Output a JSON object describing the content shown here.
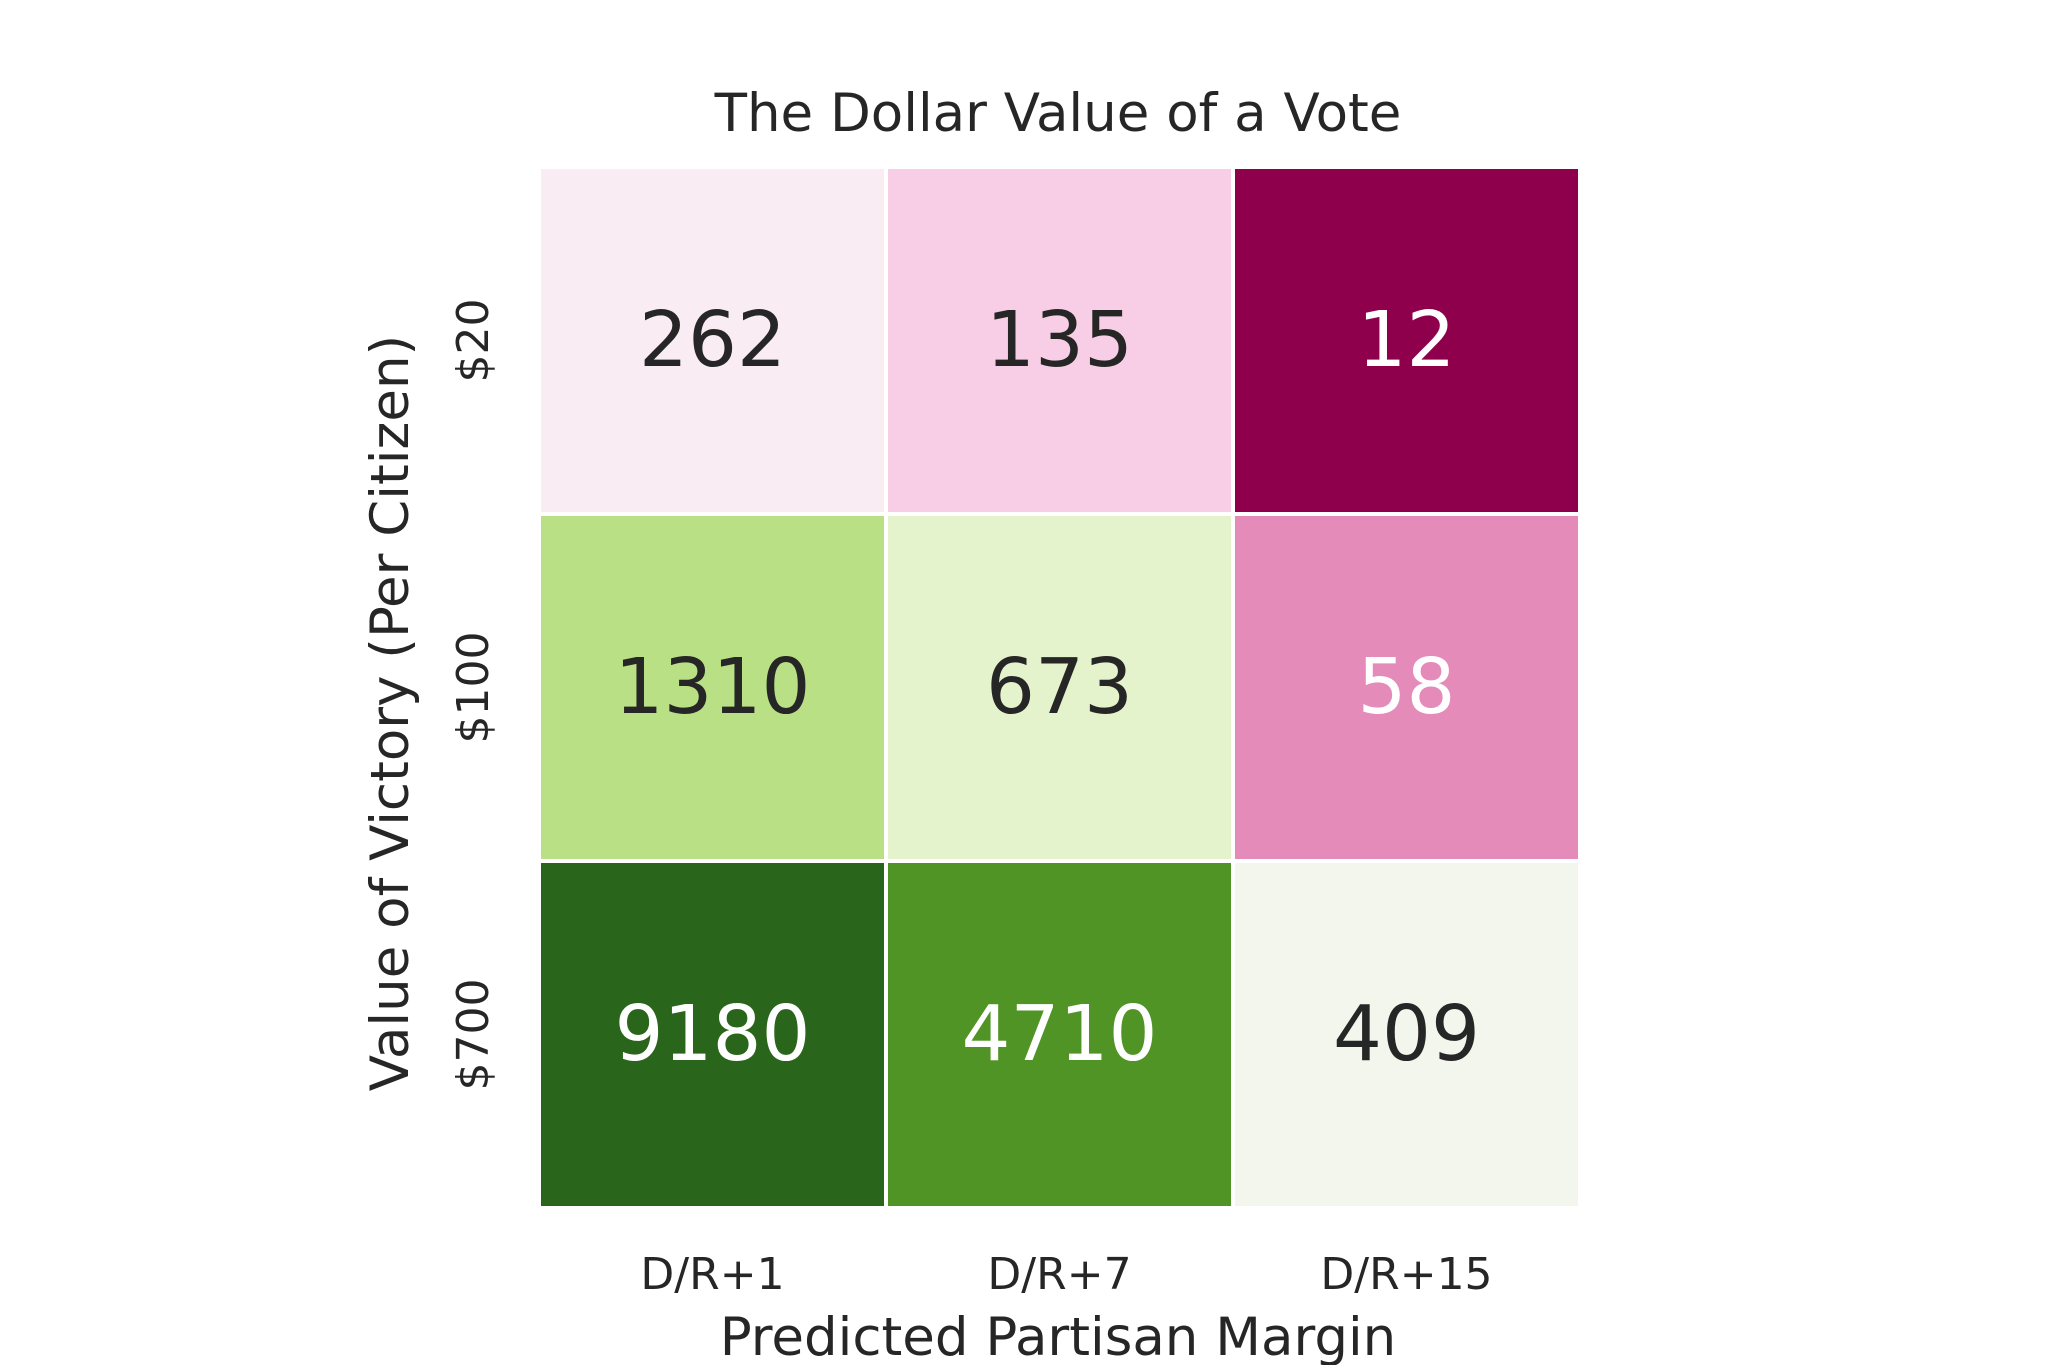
{
  "chart_data": {
    "type": "heatmap",
    "title": "The Dollar Value of a Vote",
    "xlabel": "Predicted Partisan Margin",
    "ylabel": "Value of Victory (Per Citizen)",
    "x_categories": [
      "D/R+1",
      "D/R+7",
      "D/R+15"
    ],
    "y_categories": [
      "$20",
      "$100",
      "$700"
    ],
    "values": [
      [
        262,
        135,
        12
      ],
      [
        1310,
        673,
        58
      ],
      [
        9180,
        4710,
        409
      ]
    ],
    "cell_colors": [
      [
        "#f9ecf3",
        "#f7cee5",
        "#8e004c"
      ],
      [
        "#b9e084",
        "#e4f3cc",
        "#e48bba"
      ],
      [
        "#29651a",
        "#4f9424",
        "#f3f6ec"
      ]
    ],
    "value_text_colors": [
      [
        "#262626",
        "#262626",
        "#ffffff"
      ],
      [
        "#262626",
        "#262626",
        "#ffffff"
      ],
      [
        "#ffffff",
        "#ffffff",
        "#262626"
      ]
    ],
    "colormap": "PiYG",
    "grid": false,
    "legend": "none"
  }
}
